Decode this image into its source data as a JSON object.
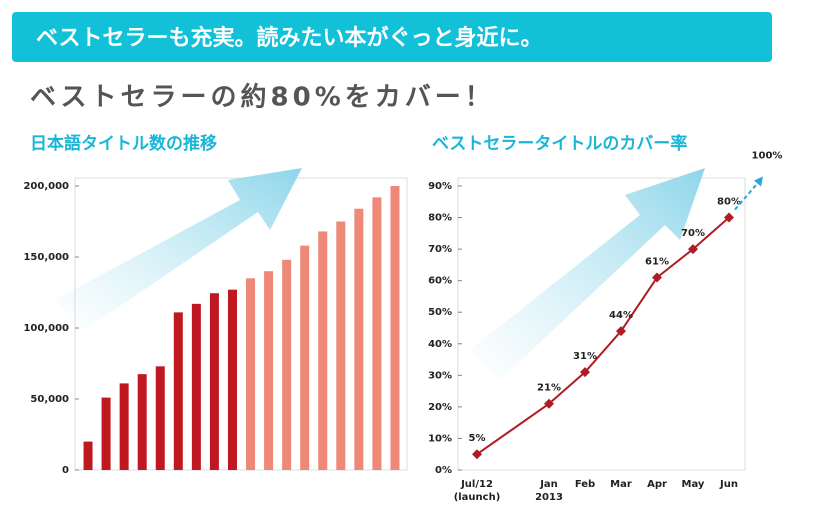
{
  "banner": "ベストセラーも充実。読みたい本がぐっと身近に。",
  "heading": "ベストセラーの約80%をカバー！",
  "chart_data": [
    {
      "type": "bar",
      "title": "日本語タイトル数の推移",
      "values": [
        20000,
        51000,
        61000,
        67500,
        73000,
        111000,
        117000,
        124500,
        127000,
        135000,
        140000,
        148000,
        158000,
        168000,
        175000,
        184000,
        192000,
        200000
      ],
      "colors": [
        "#c01820",
        "#c01820",
        "#c01820",
        "#c01820",
        "#c01820",
        "#c01820",
        "#c01820",
        "#c01820",
        "#c01820",
        "#ee8877",
        "#ee8877",
        "#ee8877",
        "#ee8877",
        "#ee8877",
        "#ee8877",
        "#ee8877",
        "#ee8877",
        "#ee8877"
      ],
      "ylim": [
        0,
        200000
      ],
      "yticks": [
        0,
        {
          "value": 50000,
          "label": "50,000"
        },
        {
          "value": 100000,
          "label": "100,000"
        },
        {
          "value": 150000,
          "label": "150,000"
        },
        {
          "value": 200000,
          "label": "200,000"
        }
      ]
    },
    {
      "type": "line",
      "title": "ベストセラータイトルのカバー率",
      "categories": [
        "Jul/12\n(launch)",
        "Jan\n2013",
        "Feb",
        "Mar",
        "Apr",
        "May",
        "Jun"
      ],
      "values": [
        5,
        21,
        31,
        44,
        61,
        70,
        80
      ],
      "value_labels": [
        "5%",
        "21%",
        "31%",
        "44%",
        "61%",
        "70%",
        "80%"
      ],
      "color": "#b01c24",
      "ylim": [
        0,
        90
      ],
      "yticks": [
        {
          "value": 0,
          "label": "0%"
        },
        {
          "value": 10,
          "label": "10%"
        },
        {
          "value": 20,
          "label": "20%"
        },
        {
          "value": 30,
          "label": "30%"
        },
        {
          "value": 40,
          "label": "40%"
        },
        {
          "value": 50,
          "label": "50%"
        },
        {
          "value": 60,
          "label": "60%"
        },
        {
          "value": 70,
          "label": "70%"
        },
        {
          "value": 80,
          "label": "80%"
        },
        {
          "value": 90,
          "label": "90%"
        }
      ],
      "annotation": "100%"
    }
  ]
}
